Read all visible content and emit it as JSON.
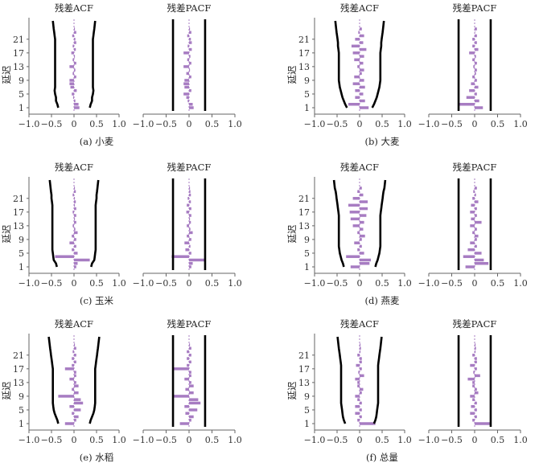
{
  "chart_data": {
    "type": "bar",
    "orientation": "horizontal",
    "lag_count": 24,
    "y_ticks": [
      "1",
      "5",
      "9",
      "13",
      "17",
      "21"
    ],
    "x_ticks": [
      "−1.0",
      "−0.5",
      "0",
      "0.5",
      "1.0"
    ],
    "xlim": [
      -1,
      1
    ],
    "ylabel": "延迟",
    "acf_title": "残差ACF",
    "pacf_title": "残差PACF",
    "panels": [
      {
        "caption": "(a) 小麦",
        "acf": [
          0.12,
          0.1,
          0.03,
          -0.02,
          -0.05,
          0.06,
          -0.08,
          -0.1,
          -0.1,
          0.05,
          -0.03,
          0.03,
          -0.1,
          0.05,
          -0.03,
          0.02,
          -0.06,
          0.04,
          -0.03,
          0.05,
          0.03,
          -0.04,
          0.05,
          0.02
        ],
        "pacf": [
          0.1,
          0.08,
          -0.03,
          -0.06,
          -0.12,
          0.05,
          -0.1,
          -0.12,
          -0.1,
          0.05,
          -0.06,
          0.02,
          -0.12,
          0.05,
          -0.04,
          0.03,
          -0.12,
          0.06,
          -0.03,
          0.06,
          0.04,
          -0.04,
          0.05,
          0.02
        ],
        "acf_band": [
          0.35,
          0.37,
          0.4,
          0.4,
          0.42,
          0.43,
          0.42,
          0.42,
          0.42,
          0.42,
          0.42,
          0.42,
          0.42,
          0.42,
          0.42,
          0.42,
          0.42,
          0.42,
          0.42,
          0.42,
          0.42,
          0.43,
          0.44,
          0.45
        ],
        "pacf_band": 0.35
      },
      {
        "caption": "(b) 大麦",
        "acf": [
          0.2,
          -0.25,
          0.12,
          -0.1,
          0.08,
          -0.1,
          0.12,
          -0.15,
          0.1,
          -0.12,
          0.05,
          0.1,
          -0.05,
          0.08,
          -0.12,
          0.1,
          -0.15,
          0.15,
          -0.18,
          0.08,
          -0.1,
          0.1,
          -0.03,
          0.05
        ],
        "pacf": [
          0.18,
          -0.35,
          0.1,
          -0.18,
          0.05,
          -0.12,
          0.08,
          -0.08,
          0.05,
          -0.05,
          0.03,
          0.05,
          -0.03,
          0.05,
          -0.05,
          0.03,
          -0.12,
          0.08,
          -0.05,
          0.05,
          -0.05,
          0.05,
          0.0,
          0.05
        ],
        "acf_band": [
          0.28,
          0.32,
          0.35,
          0.38,
          0.4,
          0.42,
          0.44,
          0.45,
          0.46,
          0.46,
          0.46,
          0.46,
          0.46,
          0.46,
          0.46,
          0.46,
          0.46,
          0.47,
          0.48,
          0.48,
          0.49,
          0.5,
          0.51,
          0.52
        ],
        "pacf_band": 0.35
      },
      {
        "caption": "(c) 玉米",
        "acf": [
          0.05,
          0.08,
          0.35,
          -0.42,
          0.08,
          -0.05,
          0.05,
          -0.1,
          0.05,
          -0.05,
          0.08,
          0.03,
          -0.03,
          0.05,
          0.02,
          0.05,
          -0.03,
          0.05,
          0.02,
          0.04,
          0.02,
          -0.03,
          0.04,
          0.02
        ],
        "pacf": [
          0.05,
          0.08,
          0.35,
          -0.38,
          0.05,
          -0.08,
          0.03,
          -0.1,
          0.05,
          -0.05,
          0.08,
          0.03,
          -0.05,
          0.04,
          0.02,
          0.05,
          -0.06,
          0.05,
          -0.05,
          0.04,
          -0.03,
          0.04,
          0.03,
          0.02
        ],
        "acf_band": [
          0.38,
          0.4,
          0.45,
          0.46,
          0.47,
          0.48,
          0.48,
          0.48,
          0.48,
          0.48,
          0.48,
          0.48,
          0.48,
          0.48,
          0.48,
          0.48,
          0.48,
          0.48,
          0.48,
          0.49,
          0.5,
          0.5,
          0.51,
          0.52
        ],
        "pacf_band": 0.35
      },
      {
        "caption": "(d) 燕麦",
        "acf": [
          -0.2,
          0.22,
          0.25,
          -0.3,
          0.1,
          -0.05,
          0.05,
          -0.12,
          0.05,
          0.12,
          -0.05,
          0.08,
          -0.15,
          0.1,
          -0.2,
          0.15,
          -0.22,
          0.18,
          -0.25,
          0.18,
          -0.15,
          0.08,
          -0.05,
          0.05
        ],
        "pacf": [
          -0.2,
          0.3,
          0.2,
          -0.25,
          0.15,
          -0.15,
          0.05,
          -0.1,
          0.05,
          0.08,
          -0.05,
          0.05,
          -0.1,
          0.15,
          -0.08,
          0.05,
          -0.1,
          0.05,
          -0.08,
          0.08,
          -0.05,
          0.03,
          -0.03,
          0.05
        ],
        "acf_band": [
          0.35,
          0.37,
          0.4,
          0.42,
          0.44,
          0.45,
          0.46,
          0.46,
          0.46,
          0.46,
          0.46,
          0.46,
          0.46,
          0.46,
          0.46,
          0.46,
          0.47,
          0.48,
          0.49,
          0.5,
          0.51,
          0.52,
          0.53,
          0.55
        ],
        "pacf_band": 0.35
      },
      {
        "caption": "(e) 水稻",
        "acf": [
          -0.2,
          0.05,
          0.1,
          -0.05,
          0.15,
          -0.1,
          0.2,
          0.15,
          -0.35,
          0.1,
          -0.05,
          0.1,
          0.05,
          -0.1,
          0.05,
          0.05,
          -0.2,
          -0.05,
          0.05,
          -0.05,
          0.05,
          -0.03,
          0.05,
          0.02
        ],
        "pacf": [
          -0.2,
          0.05,
          0.1,
          -0.08,
          0.18,
          -0.1,
          0.25,
          0.2,
          -0.35,
          0.1,
          -0.08,
          0.1,
          0.05,
          -0.1,
          0.05,
          0.05,
          -0.35,
          -0.05,
          0.05,
          -0.05,
          0.05,
          -0.05,
          0.05,
          0.02
        ],
        "acf_band": [
          0.35,
          0.37,
          0.4,
          0.43,
          0.45,
          0.46,
          0.47,
          0.47,
          0.47,
          0.47,
          0.47,
          0.47,
          0.47,
          0.47,
          0.47,
          0.47,
          0.47,
          0.48,
          0.49,
          0.5,
          0.51,
          0.52,
          0.53,
          0.54
        ],
        "pacf_band": 0.35
      },
      {
        "caption": "(f) 总量",
        "acf": [
          0.35,
          -0.05,
          0.05,
          -0.1,
          0.05,
          -0.1,
          0.05,
          -0.05,
          -0.1,
          0.05,
          0.08,
          -0.05,
          -0.05,
          -0.1,
          0.1,
          -0.03,
          0.05,
          -0.08,
          0.05,
          0.05,
          -0.05,
          0.02,
          0.03,
          0.02
        ],
        "pacf": [
          0.35,
          -0.05,
          0.05,
          -0.1,
          0.05,
          -0.08,
          0.05,
          -0.05,
          -0.1,
          0.08,
          0.05,
          -0.05,
          -0.05,
          -0.15,
          0.12,
          -0.03,
          0.05,
          -0.1,
          0.05,
          0.05,
          -0.05,
          0.02,
          0.03,
          0.02
        ],
        "acf_band": [
          0.32,
          0.35,
          0.37,
          0.38,
          0.39,
          0.4,
          0.41,
          0.41,
          0.41,
          0.41,
          0.41,
          0.41,
          0.41,
          0.41,
          0.41,
          0.41,
          0.41,
          0.41,
          0.42,
          0.43,
          0.44,
          0.45,
          0.46,
          0.47
        ],
        "pacf_band": 0.35
      }
    ]
  }
}
